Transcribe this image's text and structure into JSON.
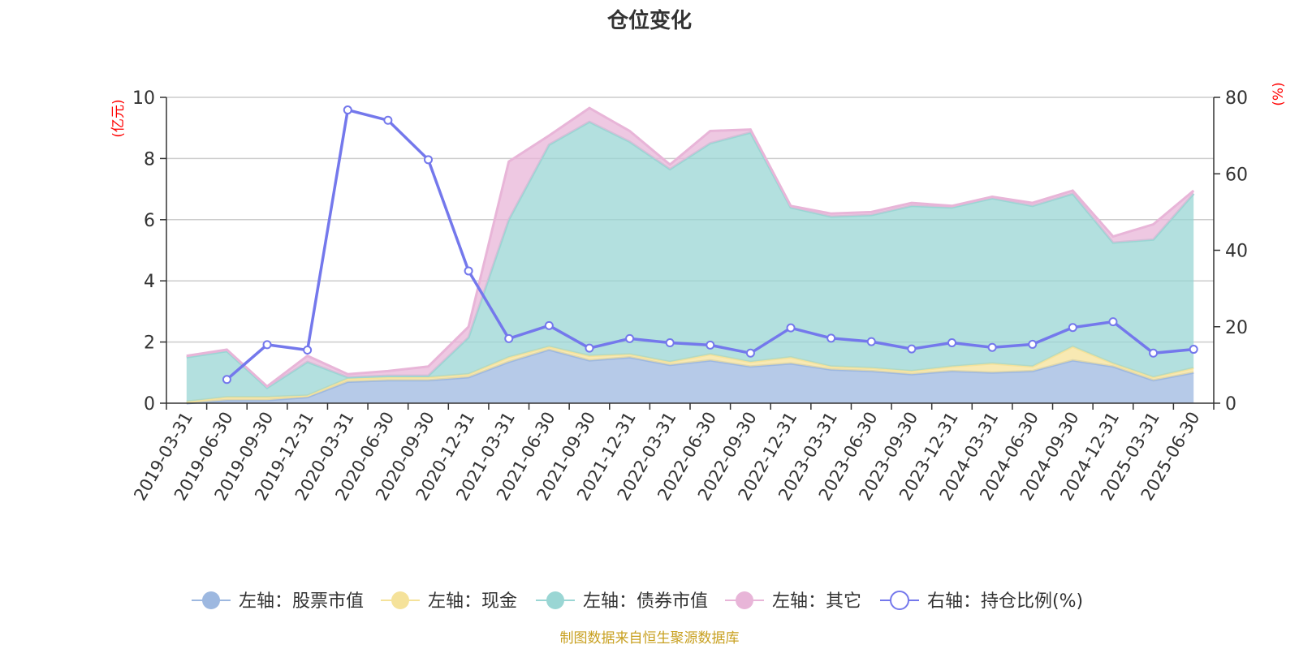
{
  "chart_data": {
    "type": "area",
    "title": "仓位变化",
    "left_unit": "(亿元)",
    "right_unit": "(%)",
    "ylim_left": [
      0,
      10
    ],
    "yticks_left": [
      "0",
      "2",
      "4",
      "6",
      "8",
      "10"
    ],
    "ylim_right": [
      0,
      80
    ],
    "yticks_right": [
      "0",
      "20",
      "40",
      "60",
      "80"
    ],
    "grid": true,
    "categories": [
      "2019-03-31",
      "2019-06-30",
      "2019-09-30",
      "2019-12-31",
      "2020-03-31",
      "2020-06-30",
      "2020-09-30",
      "2020-12-31",
      "2021-03-31",
      "2021-06-30",
      "2021-09-30",
      "2021-12-31",
      "2022-03-31",
      "2022-06-30",
      "2022-09-30",
      "2022-12-31",
      "2023-03-31",
      "2023-06-30",
      "2023-09-30",
      "2023-12-31",
      "2024-03-31",
      "2024-06-30",
      "2024-09-30",
      "2024-12-31",
      "2025-03-31",
      "2025-06-30"
    ],
    "series": [
      {
        "name": "左轴：股票市值",
        "axis": "left",
        "color": "#9db8e0",
        "values": [
          0.0,
          0.1,
          0.1,
          0.2,
          0.7,
          0.75,
          0.75,
          0.85,
          1.35,
          1.75,
          1.4,
          1.5,
          1.25,
          1.4,
          1.2,
          1.3,
          1.1,
          1.05,
          0.95,
          1.05,
          1.0,
          1.05,
          1.4,
          1.2,
          0.75,
          1.0
        ]
      },
      {
        "name": "左轴：现金",
        "axis": "left",
        "color": "#f5e29a",
        "values": [
          0.05,
          0.1,
          0.1,
          0.05,
          0.1,
          0.1,
          0.1,
          0.1,
          0.15,
          0.1,
          0.15,
          0.1,
          0.1,
          0.2,
          0.15,
          0.2,
          0.1,
          0.1,
          0.1,
          0.15,
          0.3,
          0.15,
          0.45,
          0.1,
          0.1,
          0.15
        ]
      },
      {
        "name": "左轴：债券市值",
        "axis": "left",
        "color": "#9ad6d4",
        "values": [
          1.45,
          1.5,
          0.3,
          1.1,
          0.05,
          0.05,
          0.05,
          1.2,
          4.5,
          6.6,
          7.65,
          6.95,
          6.3,
          6.9,
          7.5,
          4.9,
          4.9,
          5.0,
          5.4,
          5.2,
          5.4,
          5.25,
          5.0,
          3.95,
          4.5,
          5.7
        ]
      },
      {
        "name": "左轴：其它",
        "axis": "left",
        "color": "#e8b5d8",
        "values": [
          0.05,
          0.05,
          0.05,
          0.2,
          0.1,
          0.15,
          0.3,
          0.35,
          1.9,
          0.3,
          0.45,
          0.35,
          0.15,
          0.4,
          0.1,
          0.05,
          0.1,
          0.1,
          0.1,
          0.05,
          0.05,
          0.1,
          0.1,
          0.2,
          0.5,
          0.1
        ]
      },
      {
        "name": "右轴：持仓比例(%)",
        "axis": "right",
        "color": "#7478ec",
        "values": [
          null,
          6.2,
          15.3,
          13.9,
          76.7,
          74.0,
          63.7,
          34.6,
          16.9,
          20.3,
          14.4,
          16.9,
          15.8,
          15.2,
          13.1,
          19.7,
          17.0,
          16.1,
          14.2,
          15.8,
          14.6,
          15.4,
          19.8,
          21.3,
          13.1,
          14.1
        ]
      }
    ]
  },
  "source_note": "制图数据来自恒生聚源数据库"
}
